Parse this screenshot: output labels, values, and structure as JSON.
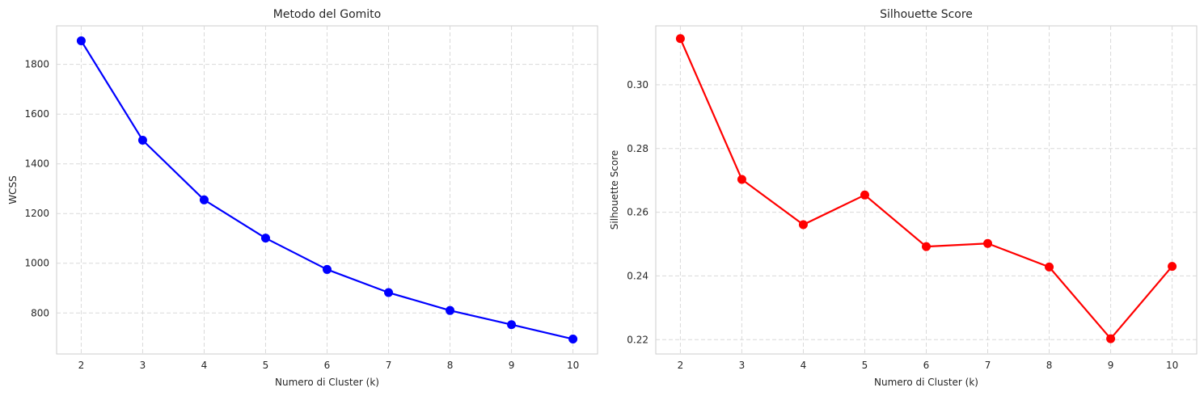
{
  "chart_data": [
    {
      "type": "line",
      "title": "Metodo del Gomito",
      "xlabel": "Numero di Cluster (k)",
      "ylabel": "WCSS",
      "x": [
        2,
        3,
        4,
        5,
        6,
        7,
        8,
        9,
        10
      ],
      "xticks": [
        "2",
        "3",
        "4",
        "5",
        "6",
        "7",
        "8",
        "9",
        "10"
      ],
      "yticks": [
        "800",
        "1000",
        "1200",
        "1400",
        "1600",
        "1800"
      ],
      "xlim": [
        1.6,
        10.4
      ],
      "ylim": [
        635,
        1955
      ],
      "grid": true,
      "series": [
        {
          "color": "#0000ff",
          "marker": "circle",
          "values": [
            1895,
            1495,
            1255,
            1101,
            975,
            882,
            810,
            753,
            695
          ]
        }
      ]
    },
    {
      "type": "line",
      "title": "Silhouette Score",
      "xlabel": "Numero di Cluster (k)",
      "ylabel": "Silhouette Score",
      "x": [
        2,
        3,
        4,
        5,
        6,
        7,
        8,
        9,
        10
      ],
      "xticks": [
        "2",
        "3",
        "4",
        "5",
        "6",
        "7",
        "8",
        "9",
        "10"
      ],
      "yticks": [
        "0.22",
        "0.24",
        "0.26",
        "0.28",
        "0.30"
      ],
      "xlim": [
        1.6,
        10.4
      ],
      "ylim": [
        0.2155,
        0.3185
      ],
      "grid": true,
      "series": [
        {
          "color": "#ff0000",
          "marker": "circle",
          "values": [
            0.3145,
            0.2703,
            0.2561,
            0.2654,
            0.2492,
            0.2502,
            0.2428,
            0.2203,
            0.243
          ]
        }
      ]
    }
  ]
}
